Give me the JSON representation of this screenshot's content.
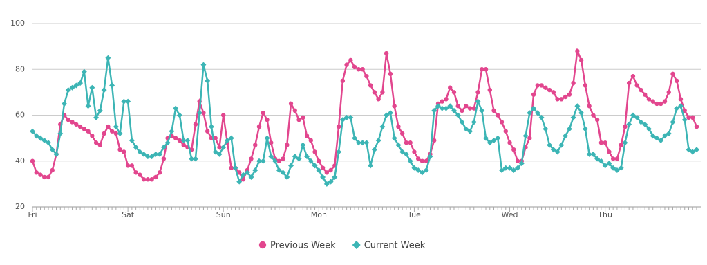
{
  "chart_data": {
    "type": "line",
    "categories": [
      "Fri",
      null,
      null,
      null,
      null,
      null,
      null,
      null,
      null,
      null,
      null,
      null,
      null,
      null,
      null,
      null,
      null,
      null,
      null,
      null,
      null,
      null,
      null,
      null,
      "Sat",
      null,
      null,
      null,
      null,
      null,
      null,
      null,
      null,
      null,
      null,
      null,
      null,
      null,
      null,
      null,
      null,
      null,
      null,
      null,
      null,
      null,
      null,
      null,
      "Sun",
      null,
      null,
      null,
      null,
      null,
      null,
      null,
      null,
      null,
      null,
      null,
      null,
      null,
      null,
      null,
      null,
      null,
      null,
      null,
      null,
      null,
      null,
      null,
      "Mon",
      null,
      null,
      null,
      null,
      null,
      null,
      null,
      null,
      null,
      null,
      null,
      null,
      null,
      null,
      null,
      null,
      null,
      null,
      null,
      null,
      null,
      null,
      null,
      "Tue",
      null,
      null,
      null,
      null,
      null,
      null,
      null,
      null,
      null,
      null,
      null,
      null,
      null,
      null,
      null,
      null,
      null,
      null,
      null,
      null,
      null,
      null,
      null,
      "Wed",
      null,
      null,
      null,
      null,
      null,
      null,
      null,
      null,
      null,
      null,
      null,
      null,
      null,
      null,
      null,
      null,
      null,
      null,
      null,
      null,
      null,
      null,
      null,
      "Thu",
      null,
      null,
      null,
      null,
      null,
      null,
      null,
      null,
      null,
      null,
      null,
      null,
      null,
      null,
      null,
      null,
      null,
      null,
      null,
      null,
      null,
      null,
      null
    ],
    "series": [
      {
        "name": "Previous Week",
        "color": "#e2468e",
        "marker": "circle",
        "values": [
          40,
          35,
          34,
          33,
          33,
          36,
          43,
          56,
          60,
          58,
          57,
          56,
          55,
          54,
          53,
          51,
          48,
          47,
          52,
          55,
          53,
          52,
          45,
          44,
          38,
          38,
          35,
          34,
          32,
          32,
          32,
          33,
          35,
          41,
          50,
          51,
          50,
          49,
          47,
          46,
          45,
          56,
          66,
          61,
          53,
          50,
          50,
          46,
          60,
          48,
          37,
          37,
          35,
          32,
          36,
          41,
          47,
          55,
          61,
          58,
          48,
          41,
          40,
          41,
          47,
          65,
          62,
          58,
          59,
          51,
          49,
          44,
          40,
          37,
          35,
          36,
          38,
          55,
          75,
          82,
          84,
          81,
          80,
          80,
          77,
          73,
          70,
          67,
          70,
          87,
          78,
          64,
          55,
          52,
          48,
          48,
          44,
          41,
          40,
          40,
          43,
          49,
          65,
          66,
          67,
          72,
          70,
          64,
          62,
          64,
          63,
          63,
          70,
          80,
          80,
          71,
          62,
          60,
          57,
          53,
          48,
          45,
          40,
          40,
          46,
          50,
          69,
          73,
          73,
          72,
          71,
          70,
          67,
          67,
          68,
          69,
          74,
          88,
          84,
          73,
          64,
          60,
          58,
          48,
          48,
          44,
          41,
          41,
          47,
          55,
          74,
          77,
          73,
          71,
          69,
          67,
          66,
          65,
          65,
          66,
          70,
          78,
          75,
          67,
          62,
          59,
          59,
          55
        ]
      },
      {
        "name": "Current Week",
        "color": "#3cb5b5",
        "marker": "diamond",
        "values": [
          53,
          51,
          50,
          49,
          48,
          45,
          43,
          52,
          65,
          71,
          72,
          73,
          74,
          79,
          64,
          72,
          59,
          62,
          71,
          85,
          73,
          55,
          52,
          66,
          66,
          49,
          46,
          44,
          43,
          42,
          42,
          43,
          43,
          46,
          48,
          53,
          63,
          60,
          49,
          49,
          41,
          41,
          61,
          82,
          75,
          55,
          44,
          43,
          46,
          49,
          50,
          37,
          31,
          34,
          35,
          33,
          36,
          40,
          40,
          50,
          42,
          40,
          36,
          35,
          33,
          38,
          42,
          41,
          47,
          42,
          40,
          38,
          36,
          33,
          30,
          31,
          33,
          44,
          58,
          59,
          59,
          50,
          48,
          48,
          48,
          38,
          45,
          49,
          55,
          60,
          61,
          50,
          47,
          44,
          43,
          40,
          37,
          36,
          35,
          36,
          42,
          62,
          64,
          63,
          63,
          64,
          62,
          60,
          57,
          54,
          53,
          57,
          66,
          62,
          50,
          48,
          49,
          50,
          36,
          37,
          37,
          36,
          37,
          39,
          51,
          61,
          63,
          61,
          59,
          54,
          47,
          45,
          44,
          47,
          51,
          54,
          59,
          64,
          61,
          54,
          43,
          43,
          41,
          40,
          38,
          39,
          37,
          36,
          37,
          48,
          56,
          60,
          59,
          57,
          56,
          54,
          51,
          50,
          49,
          51,
          52,
          57,
          63,
          64,
          58,
          45,
          44,
          45
        ]
      }
    ],
    "ylim": [
      20,
      100
    ],
    "yticks": [
      20,
      40,
      60,
      80,
      100
    ],
    "grid": true,
    "legend": "bottom"
  }
}
